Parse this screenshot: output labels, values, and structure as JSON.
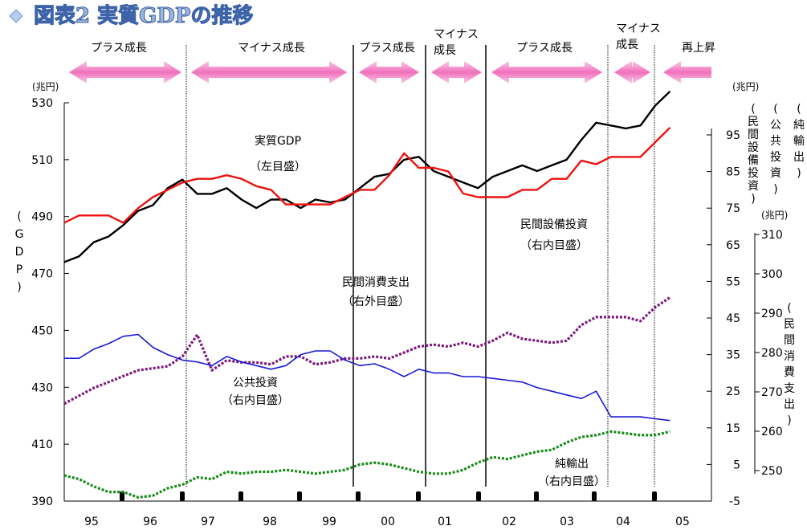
{
  "chart_data": {
    "type": "line",
    "title": "図表2 実質GDPの推移",
    "phases": [
      {
        "label": "プラス成長"
      },
      {
        "label": "マイナス成長"
      },
      {
        "label": "プラス成長"
      },
      {
        "label": "マイナス成長",
        "line1": "マイナス",
        "line2": "成長"
      },
      {
        "label": "プラス成長"
      },
      {
        "label": "マイナス成長",
        "line1": "マイナス",
        "line2": "成長"
      },
      {
        "label": "再上昇"
      }
    ],
    "x_labels": [
      "95",
      "96",
      "97",
      "98",
      "99",
      "00",
      "01",
      "02",
      "03",
      "04",
      "05"
    ],
    "axes": {
      "left": {
        "unit": "(兆円)",
        "label_chars": [
          "(",
          "G",
          "D",
          "P",
          ")"
        ],
        "ticks": [
          530,
          510,
          490,
          470,
          450,
          430,
          410,
          390
        ],
        "range": [
          390,
          530
        ]
      },
      "right_inner": {
        "unit": "(兆円)",
        "ticks": [
          95,
          85,
          75,
          65,
          55,
          45,
          35,
          25,
          15,
          5,
          -5
        ],
        "range": [
          -5,
          95
        ]
      },
      "right_outer": {
        "unit": "(兆円)",
        "ticks": [
          310,
          300,
          290,
          280,
          270,
          260,
          250
        ],
        "range": [
          250,
          310
        ]
      },
      "right_labels": [
        [
          "(",
          "純",
          "輸",
          "出",
          ")"
        ],
        [
          "(",
          "公",
          "共",
          "投",
          "資",
          ")"
        ],
        [
          "(",
          "民",
          "間",
          "設",
          "備",
          "投",
          "資",
          ")"
        ],
        [
          "(",
          "民",
          "間",
          "消",
          "費",
          "支",
          "出",
          ")"
        ]
      ]
    },
    "annotations": [
      {
        "id": "gdp",
        "lines": [
          "実質GDP",
          "（左目盛）"
        ]
      },
      {
        "id": "setsubi",
        "lines": [
          "民間設備投資",
          "（右内目盛）"
        ]
      },
      {
        "id": "shohi",
        "lines": [
          "民間消費支出",
          "（右外目盛）"
        ]
      },
      {
        "id": "kokyo",
        "lines": [
          "公共投資",
          "（右内目盛）"
        ]
      },
      {
        "id": "yushutsu",
        "lines": [
          "純輸出",
          "（右内目盛）"
        ]
      }
    ],
    "series": [
      {
        "id": "gdp",
        "name": "実質GDP",
        "axis": "left",
        "color": "#000000",
        "style": "solid",
        "values": [
          474,
          476,
          481,
          483,
          487,
          492,
          494,
          500,
          503,
          498,
          498,
          500,
          496,
          493,
          496,
          496,
          493,
          496,
          495,
          496,
          500,
          504,
          505,
          510,
          511,
          506,
          504,
          502,
          500,
          504,
          506,
          508,
          506,
          508,
          510,
          517,
          523,
          522,
          521,
          522,
          529,
          534
        ]
      },
      {
        "id": "setsubi",
        "name": "民間設備投資",
        "axis": "right_inner",
        "color": "#ee1111",
        "style": "solid",
        "values": [
          71,
          73,
          73,
          73,
          71,
          75,
          78,
          80,
          82,
          83,
          83,
          84,
          83,
          81,
          80,
          76,
          76,
          76,
          76,
          78,
          80,
          80,
          84,
          90,
          86,
          86,
          85,
          79,
          78,
          78,
          78,
          80,
          80,
          83,
          83,
          88,
          87,
          89,
          89,
          89,
          93,
          97
        ]
      },
      {
        "id": "shohi",
        "name": "民間消費支出",
        "axis": "right_outer",
        "color": "#7a1a7a",
        "style": "dotted",
        "values": [
          267,
          269,
          271,
          272.5,
          274,
          275.5,
          276,
          276.5,
          279,
          284.5,
          275.5,
          278,
          277.5,
          277.5,
          277,
          279,
          279,
          277,
          277.5,
          278.5,
          278.5,
          279,
          278.5,
          280,
          281.5,
          282,
          281.5,
          282.5,
          281.5,
          283,
          285,
          283.5,
          283,
          282.5,
          283,
          287,
          289,
          289,
          289,
          288,
          291.5,
          294
        ]
      },
      {
        "id": "kokyo",
        "name": "公共投資",
        "axis": "right_inner",
        "color": "#1a1ad4",
        "style": "solid",
        "values": [
          34,
          34,
          36.5,
          38,
          40,
          40.5,
          37,
          35,
          33.5,
          33,
          32,
          34.5,
          33,
          32,
          31,
          32,
          35,
          36,
          36,
          33.5,
          32,
          32.5,
          31,
          29,
          31,
          30,
          30,
          29,
          29,
          28.5,
          28,
          27.5,
          26,
          25,
          24,
          23,
          25,
          18,
          18,
          18,
          17.5,
          17
        ]
      },
      {
        "id": "yushutsu",
        "name": "純輸出",
        "axis": "right_inner",
        "color": "#1a8a1a",
        "style": "dotted",
        "values": [
          2,
          1,
          -1,
          -2.5,
          -2.5,
          -4,
          -3.5,
          -1.5,
          -0.5,
          1.5,
          1,
          3,
          2.5,
          3,
          3,
          3.5,
          3,
          2.5,
          3,
          3.5,
          5,
          5.5,
          5,
          4,
          3,
          2.5,
          2.5,
          3.5,
          5.5,
          7,
          6.5,
          7.5,
          8.5,
          9,
          11,
          12.5,
          13,
          14,
          13.5,
          13,
          13,
          14
        ]
      }
    ]
  }
}
